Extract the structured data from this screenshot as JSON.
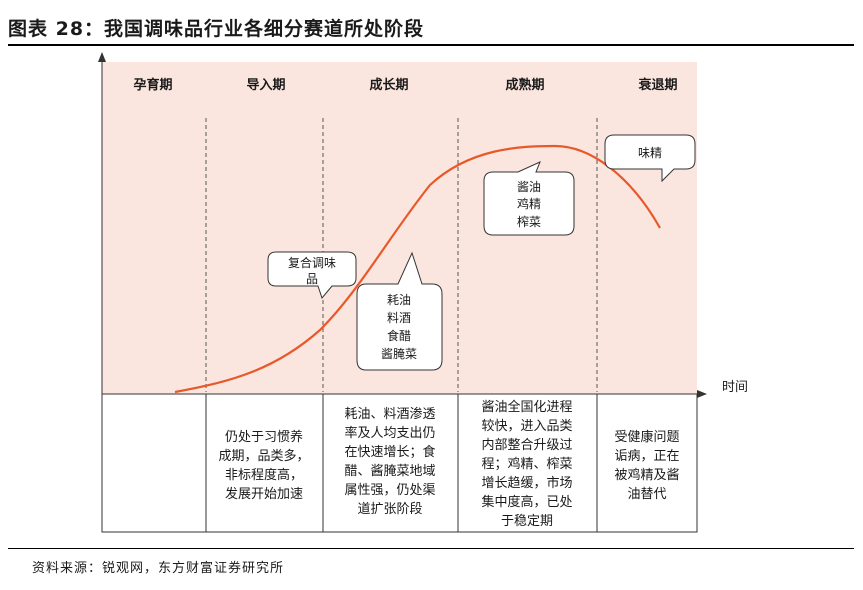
{
  "title": "图表 28：我国调味品行业各细分赛道所处阶段",
  "source": "资料来源：锐观网，东方财富证券研究所",
  "axis_label": "时间",
  "stages": [
    "孕育期",
    "导入期",
    "成长期",
    "成熟期",
    "衰退期"
  ],
  "bubbles": {
    "compound": [
      "复合调味",
      "品"
    ],
    "growth": [
      "耗油",
      "料酒",
      "食醋",
      "酱腌菜"
    ],
    "mature": [
      "酱油",
      "鸡精",
      "榨菜"
    ],
    "decline": [
      "味精"
    ]
  },
  "descriptions": {
    "gestation": [],
    "intro": [
      "仍处于习惯养",
      "成期，品类多，",
      "非标程度高，",
      "发展开始加速"
    ],
    "growth": [
      "耗油、料酒渗透",
      "率及人均支出仍",
      "在快速增长；食",
      "醋、酱腌菜地域",
      "属性强，仍处渠",
      "道扩张阶段"
    ],
    "mature": [
      "酱油全国化进程",
      "较快，进入品类",
      "内部整合升级过",
      "程；鸡精、榨菜",
      "增长趋缓，市场",
      "集中度高，已处",
      "于稳定期"
    ],
    "decline": [
      "受健康问题",
      "诟病，正在",
      "被鸡精及酱",
      "油替代"
    ]
  },
  "colors": {
    "curve": "#e8592a",
    "band": "#fbe6df",
    "divider": "#555555"
  }
}
